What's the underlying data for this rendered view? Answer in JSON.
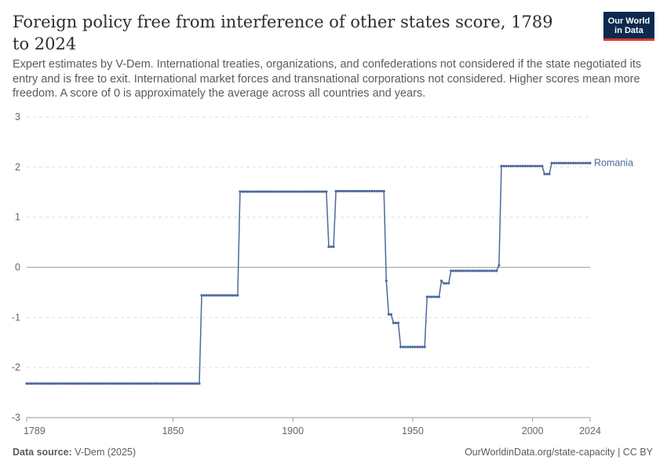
{
  "header": {
    "title": "Foreign policy free from interference of other states score, 1789 to 2024",
    "subtitle": "Expert estimates by V-Dem. International treaties, organizations, and confederations not considered if the state negotiated its entry and is free to exit. International market forces and transnational corporations not considered. Higher scores mean more freedom. A score of 0 is approximately the average across all countries and years."
  },
  "logo": {
    "line1": "Our World",
    "line2": "in Data",
    "bg_color": "#0c2a4e",
    "accent_color": "#d73a31"
  },
  "footer": {
    "source_label": "Data source:",
    "source_value": "V-Dem (2025)",
    "credit": "OurWorldinData.org/state-capacity | CC BY"
  },
  "chart_data": {
    "type": "line",
    "title": "Foreign policy free from interference of other states score, 1789 to 2024",
    "xlim": [
      1789,
      2024
    ],
    "ylim": [
      -3,
      3
    ],
    "x_ticks": [
      "1789",
      "1850",
      "1900",
      "1950",
      "2000",
      "2024"
    ],
    "x_tick_values": [
      1789,
      1850,
      1900,
      1950,
      2000,
      2024
    ],
    "y_ticks": [
      "-3",
      "-2",
      "-1",
      "0",
      "1",
      "2",
      "3"
    ],
    "y_tick_values": [
      -3,
      -2,
      -1,
      0,
      1,
      2,
      3
    ],
    "grid": "horizontal dashed",
    "series": [
      {
        "name": "Romania",
        "color": "#4c6a9c",
        "segments": [
          {
            "from": 1789,
            "to": 1861,
            "value": -2.32
          },
          {
            "from": 1862,
            "to": 1877,
            "value": -0.56
          },
          {
            "from": 1878,
            "to": 1914,
            "value": 1.51
          },
          {
            "from": 1915,
            "to": 1917,
            "value": 0.41
          },
          {
            "from": 1918,
            "to": 1938,
            "value": 1.52
          },
          {
            "from": 1939,
            "to": 1939,
            "value": -0.27
          },
          {
            "from": 1940,
            "to": 1941,
            "value": -0.94
          },
          {
            "from": 1942,
            "to": 1944,
            "value": -1.11
          },
          {
            "from": 1945,
            "to": 1955,
            "value": -1.59
          },
          {
            "from": 1956,
            "to": 1961,
            "value": -0.59
          },
          {
            "from": 1962,
            "to": 1962,
            "value": -0.27
          },
          {
            "from": 1963,
            "to": 1965,
            "value": -0.32
          },
          {
            "from": 1966,
            "to": 1985,
            "value": -0.07
          },
          {
            "from": 1986,
            "to": 1986,
            "value": 0.04
          },
          {
            "from": 1987,
            "to": 2004,
            "value": 2.02
          },
          {
            "from": 2005,
            "to": 2007,
            "value": 1.86
          },
          {
            "from": 2008,
            "to": 2024,
            "value": 2.08
          }
        ]
      }
    ],
    "labels": {
      "series_end_label": "Romania"
    }
  }
}
